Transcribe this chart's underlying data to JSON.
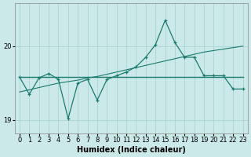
{
  "title": "",
  "xlabel": "Humidex (Indice chaleur)",
  "bg_color": "#cce9e9",
  "grid_color": "#aad4d4",
  "line_color": "#1a7a6e",
  "x_values": [
    0,
    1,
    2,
    3,
    4,
    5,
    6,
    7,
    8,
    9,
    10,
    11,
    12,
    13,
    14,
    15,
    16,
    17,
    18,
    19,
    20,
    21,
    22,
    23
  ],
  "y_wavy": [
    19.58,
    19.35,
    19.57,
    19.63,
    19.55,
    19.02,
    19.5,
    19.55,
    19.27,
    19.55,
    19.6,
    19.65,
    19.72,
    19.85,
    20.02,
    20.35,
    20.05,
    19.85,
    19.85,
    19.6,
    19.6,
    19.6,
    19.42,
    19.42
  ],
  "y_trend": [
    19.38,
    19.41,
    19.44,
    19.47,
    19.5,
    19.52,
    19.54,
    19.57,
    19.59,
    19.62,
    19.65,
    19.68,
    19.71,
    19.74,
    19.77,
    19.8,
    19.83,
    19.86,
    19.89,
    19.92,
    19.94,
    19.96,
    19.98,
    20.0
  ],
  "y_flat": [
    19.58,
    19.58,
    19.58,
    19.58,
    19.58,
    19.58,
    19.58,
    19.58,
    19.58,
    19.58,
    19.58,
    19.58,
    19.58,
    19.58,
    19.58,
    19.58,
    19.58,
    19.58,
    19.58,
    19.58,
    19.58,
    19.58,
    19.58,
    19.58
  ],
  "ylim": [
    18.82,
    20.58
  ],
  "yticks": [
    19,
    20
  ],
  "label_fontsize": 7,
  "tick_fontsize": 6
}
